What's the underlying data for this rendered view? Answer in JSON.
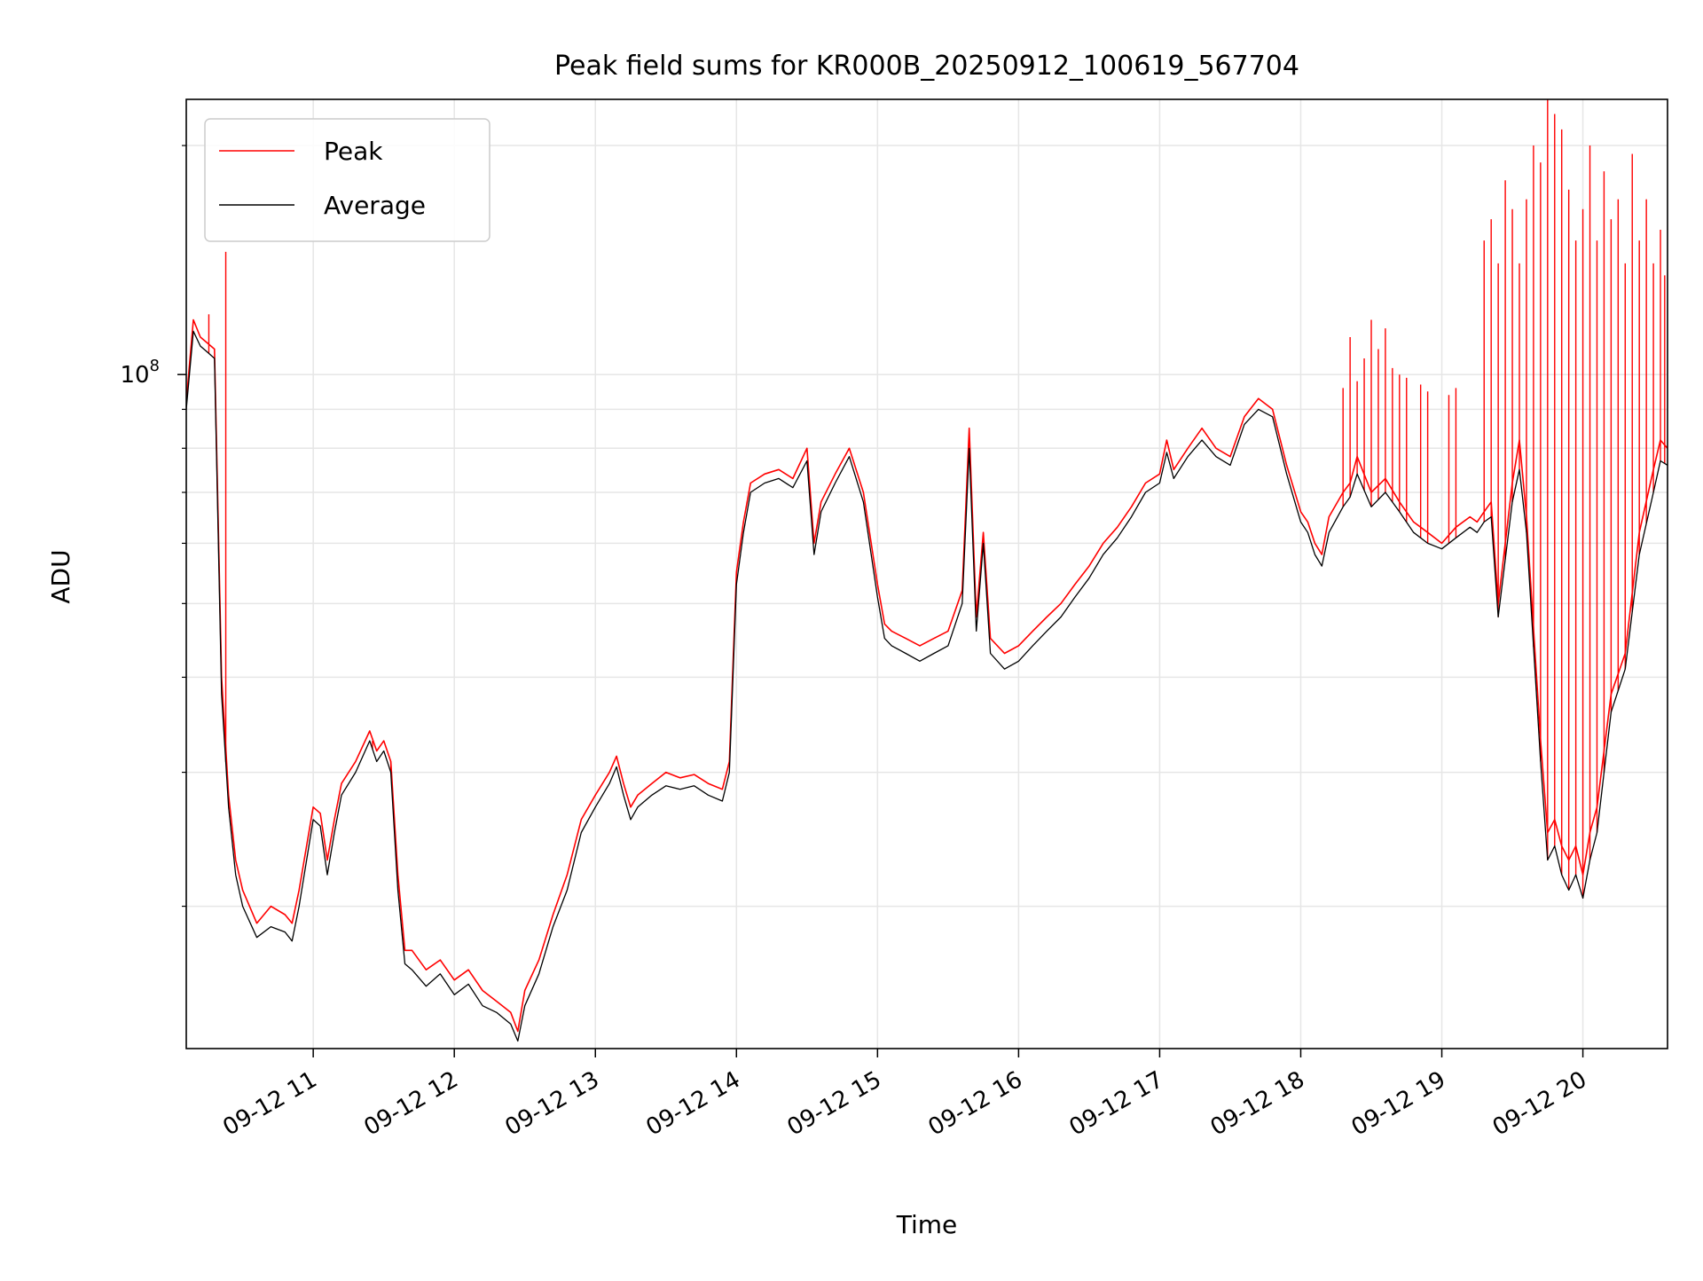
{
  "chart_data": {
    "type": "line",
    "title": "Peak field sums for KR000B_20250912_100619_567704",
    "xlabel": "Time",
    "ylabel": "ADU",
    "yscale": "log",
    "grid": true,
    "legend_position": "top-left",
    "x_ticks": [
      "09-12 11",
      "09-12 12",
      "09-12 13",
      "09-12 14",
      "09-12 15",
      "09-12 16",
      "09-12 17",
      "09-12 18",
      "09-12 19",
      "09-12 20"
    ],
    "x_tick_hours": [
      11,
      12,
      13,
      14,
      15,
      16,
      17,
      18,
      19,
      20
    ],
    "xlim_hours": [
      10.1,
      20.6
    ],
    "y_major_tick_value": 100000000,
    "y_major_tick_label_base": "10",
    "y_major_tick_label_exp": "8",
    "y_minor_ticks": [
      20000000,
      30000000,
      40000000,
      50000000,
      60000000,
      70000000,
      80000000,
      90000000,
      200000000
    ],
    "ylim": [
      13000000,
      230000000
    ],
    "series": [
      {
        "name": "Peak",
        "color": "#ff0000",
        "x_hours": [
          10.1,
          10.15,
          10.2,
          10.25,
          10.3,
          10.35,
          10.4,
          10.45,
          10.5,
          10.6,
          10.7,
          10.8,
          10.85,
          10.9,
          11.0,
          11.05,
          11.1,
          11.15,
          11.2,
          11.3,
          11.4,
          11.45,
          11.5,
          11.55,
          11.6,
          11.65,
          11.7,
          11.8,
          11.9,
          12.0,
          12.1,
          12.2,
          12.3,
          12.4,
          12.45,
          12.5,
          12.6,
          12.7,
          12.8,
          12.9,
          13.0,
          13.1,
          13.15,
          13.2,
          13.25,
          13.3,
          13.4,
          13.5,
          13.6,
          13.7,
          13.8,
          13.9,
          13.95,
          14.0,
          14.05,
          14.1,
          14.2,
          14.3,
          14.4,
          14.5,
          14.55,
          14.6,
          14.7,
          14.8,
          14.9,
          15.0,
          15.05,
          15.1,
          15.2,
          15.3,
          15.4,
          15.5,
          15.6,
          15.65,
          15.7,
          15.75,
          15.8,
          15.9,
          16.0,
          16.1,
          16.2,
          16.3,
          16.4,
          16.5,
          16.6,
          16.7,
          16.8,
          16.9,
          17.0,
          17.05,
          17.1,
          17.2,
          17.3,
          17.4,
          17.5,
          17.6,
          17.7,
          17.8,
          17.9,
          18.0,
          18.05,
          18.1,
          18.15,
          18.2,
          18.3,
          18.35,
          18.4,
          18.5,
          18.6,
          18.7,
          18.8,
          18.9,
          19.0,
          19.1,
          19.2,
          19.25,
          19.3,
          19.35,
          19.4,
          19.5,
          19.55,
          19.6,
          19.7,
          19.75,
          19.8,
          19.85,
          19.9,
          19.95,
          20.0,
          20.05,
          20.1,
          20.2,
          20.3,
          20.4,
          20.5,
          20.55,
          20.6
        ],
        "values": [
          92000000,
          118000000,
          112000000,
          110000000,
          108000000,
          40000000,
          28000000,
          23000000,
          21000000,
          19000000,
          20000000,
          19500000,
          19000000,
          21000000,
          27000000,
          26500000,
          23000000,
          26000000,
          29000000,
          31000000,
          34000000,
          32000000,
          33000000,
          31000000,
          22000000,
          17500000,
          17500000,
          16500000,
          17000000,
          16000000,
          16500000,
          15500000,
          15000000,
          14500000,
          13700000,
          15500000,
          17000000,
          19500000,
          22000000,
          26000000,
          28000000,
          30000000,
          31500000,
          29000000,
          27000000,
          28000000,
          29000000,
          30000000,
          29500000,
          29800000,
          29000000,
          28500000,
          31000000,
          55000000,
          64000000,
          72000000,
          74000000,
          75000000,
          73000000,
          80000000,
          60000000,
          68000000,
          74000000,
          80000000,
          70000000,
          53000000,
          47000000,
          46000000,
          45000000,
          44000000,
          45000000,
          46000000,
          52000000,
          85000000,
          48000000,
          62000000,
          45000000,
          43000000,
          44000000,
          46000000,
          48000000,
          50000000,
          53000000,
          56000000,
          60000000,
          63000000,
          67000000,
          72000000,
          74000000,
          82000000,
          75000000,
          80000000,
          85000000,
          80000000,
          78000000,
          88000000,
          93000000,
          90000000,
          76000000,
          66000000,
          64000000,
          60000000,
          58000000,
          65000000,
          70000000,
          72000000,
          78000000,
          70000000,
          73000000,
          68000000,
          64000000,
          62000000,
          60000000,
          63000000,
          65000000,
          64000000,
          66000000,
          68000000,
          50000000,
          72000000,
          82000000,
          65000000,
          33000000,
          25000000,
          26000000,
          24000000,
          23000000,
          24000000,
          22000000,
          25000000,
          27000000,
          38000000,
          43000000,
          62000000,
          75000000,
          82000000,
          80000000
        ]
      },
      {
        "name": "Average",
        "color": "#000000",
        "x_hours": [
          10.1,
          10.15,
          10.2,
          10.25,
          10.3,
          10.35,
          10.4,
          10.45,
          10.5,
          10.6,
          10.7,
          10.8,
          10.85,
          10.9,
          11.0,
          11.05,
          11.1,
          11.15,
          11.2,
          11.3,
          11.4,
          11.45,
          11.5,
          11.55,
          11.6,
          11.65,
          11.7,
          11.8,
          11.9,
          12.0,
          12.1,
          12.2,
          12.3,
          12.4,
          12.45,
          12.5,
          12.6,
          12.7,
          12.8,
          12.9,
          13.0,
          13.1,
          13.15,
          13.2,
          13.25,
          13.3,
          13.4,
          13.5,
          13.6,
          13.7,
          13.8,
          13.9,
          13.95,
          14.0,
          14.05,
          14.1,
          14.2,
          14.3,
          14.4,
          14.5,
          14.55,
          14.6,
          14.7,
          14.8,
          14.9,
          15.0,
          15.05,
          15.1,
          15.2,
          15.3,
          15.4,
          15.5,
          15.6,
          15.65,
          15.7,
          15.75,
          15.8,
          15.9,
          16.0,
          16.1,
          16.2,
          16.3,
          16.4,
          16.5,
          16.6,
          16.7,
          16.8,
          16.9,
          17.0,
          17.05,
          17.1,
          17.2,
          17.3,
          17.4,
          17.5,
          17.6,
          17.7,
          17.8,
          17.9,
          18.0,
          18.05,
          18.1,
          18.15,
          18.2,
          18.3,
          18.35,
          18.4,
          18.5,
          18.6,
          18.7,
          18.8,
          18.9,
          19.0,
          19.1,
          19.2,
          19.25,
          19.3,
          19.35,
          19.4,
          19.5,
          19.55,
          19.6,
          19.7,
          19.75,
          19.8,
          19.85,
          19.9,
          19.95,
          20.0,
          20.05,
          20.1,
          20.2,
          20.3,
          20.4,
          20.5,
          20.55,
          20.6
        ],
        "values": [
          90000000,
          114000000,
          109000000,
          107000000,
          105000000,
          38000000,
          27000000,
          22000000,
          20000000,
          18200000,
          18800000,
          18500000,
          18000000,
          20000000,
          26000000,
          25500000,
          22000000,
          25000000,
          28000000,
          30000000,
          33000000,
          31000000,
          32000000,
          30000000,
          21000000,
          16800000,
          16500000,
          15700000,
          16300000,
          15300000,
          15800000,
          14800000,
          14500000,
          14000000,
          13300000,
          14800000,
          16300000,
          18800000,
          21000000,
          25000000,
          27000000,
          29000000,
          30500000,
          28000000,
          26000000,
          27000000,
          28000000,
          28800000,
          28500000,
          28800000,
          28000000,
          27500000,
          30000000,
          53000000,
          62000000,
          70000000,
          72000000,
          73000000,
          71000000,
          77000000,
          58000000,
          66000000,
          72000000,
          78000000,
          68000000,
          51000000,
          45000000,
          44000000,
          43000000,
          42000000,
          43000000,
          44000000,
          50000000,
          80000000,
          46000000,
          60000000,
          43000000,
          41000000,
          42000000,
          44000000,
          46000000,
          48000000,
          51000000,
          54000000,
          58000000,
          61000000,
          65000000,
          70000000,
          72000000,
          79000000,
          73000000,
          78000000,
          82000000,
          78000000,
          76000000,
          86000000,
          90000000,
          88000000,
          74000000,
          64000000,
          62000000,
          58000000,
          56000000,
          62000000,
          67000000,
          69000000,
          74000000,
          67000000,
          70000000,
          66000000,
          62000000,
          60000000,
          59000000,
          61000000,
          63000000,
          62000000,
          64000000,
          65000000,
          48000000,
          68000000,
          75000000,
          62000000,
          31000000,
          23000000,
          24000000,
          22000000,
          21000000,
          22000000,
          20500000,
          23000000,
          25000000,
          36000000,
          41000000,
          58000000,
          70000000,
          77000000,
          76000000
        ]
      }
    ],
    "peak_spikes_hours": [
      10.26,
      10.38,
      11.42,
      11.55,
      18.3,
      18.35,
      18.4,
      18.45,
      18.5,
      18.55,
      18.6,
      18.65,
      18.7,
      18.75,
      18.85,
      18.9,
      19.05,
      19.1,
      19.3,
      19.35,
      19.4,
      19.45,
      19.5,
      19.55,
      19.6,
      19.65,
      19.7,
      19.75,
      19.8,
      19.85,
      19.9,
      19.95,
      20.0,
      20.05,
      20.1,
      20.15,
      20.2,
      20.25,
      20.3,
      20.35,
      20.4,
      20.45,
      20.5,
      20.55,
      20.58
    ],
    "peak_spikes_values": [
      120000000,
      145000000,
      33000000,
      31000000,
      96000000,
      112000000,
      98000000,
      105000000,
      118000000,
      108000000,
      115000000,
      102000000,
      100000000,
      99000000,
      97000000,
      95000000,
      94000000,
      96000000,
      150000000,
      160000000,
      140000000,
      180000000,
      165000000,
      140000000,
      170000000,
      200000000,
      190000000,
      230000000,
      220000000,
      210000000,
      175000000,
      150000000,
      165000000,
      200000000,
      150000000,
      185000000,
      160000000,
      170000000,
      140000000,
      195000000,
      150000000,
      170000000,
      140000000,
      155000000,
      135000000
    ]
  }
}
